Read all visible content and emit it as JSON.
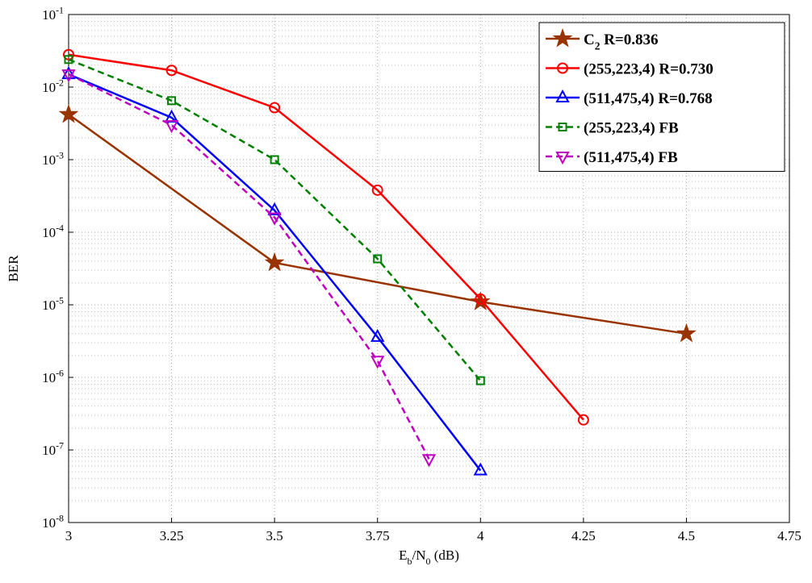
{
  "chart_data": {
    "type": "line",
    "xlabel": "E_b/N_0 (dB)",
    "ylabel": "BER",
    "xlim": [
      3,
      4.75
    ],
    "xticks": [
      3,
      3.25,
      3.5,
      3.75,
      4,
      4.25,
      4.5,
      4.75
    ],
    "ylim": [
      1e-08,
      0.1
    ],
    "yscale": "log",
    "yticks": [
      {
        "value": 1e-08,
        "label": "10^{-8}"
      },
      {
        "value": 1e-07,
        "label": "10^{-7}"
      },
      {
        "value": 1e-06,
        "label": "10^{-6}"
      },
      {
        "value": 1e-05,
        "label": "10^{-5}"
      },
      {
        "value": 0.0001,
        "label": "10^{-4}"
      },
      {
        "value": 0.001,
        "label": "10^{-3}"
      },
      {
        "value": 0.01,
        "label": "10^{-2}"
      },
      {
        "value": 0.1,
        "label": "10^{-1}"
      }
    ],
    "grid": true,
    "minor_grid": true,
    "legend": "upper right",
    "series": [
      {
        "name": "C_2 R=0.836",
        "color": "#993300",
        "marker": "star",
        "dash": false,
        "x": [
          3,
          3.5,
          4,
          4.5
        ],
        "values": [
          0.0042,
          3.8e-05,
          1.1e-05,
          4e-06
        ]
      },
      {
        "name": "(255,223,4) R=0.730",
        "color": "#ff0000",
        "marker": "circle",
        "dash": false,
        "x": [
          3,
          3.25,
          3.5,
          3.75,
          4,
          4.25
        ],
        "values": [
          0.028,
          0.017,
          0.0052,
          0.00038,
          1.2e-05,
          2.6e-07
        ]
      },
      {
        "name": "(511,475,4) R=0.768",
        "color": "#0000ff",
        "marker": "triangle-up",
        "dash": false,
        "x": [
          3,
          3.25,
          3.5,
          3.75,
          4
        ],
        "values": [
          0.015,
          0.0038,
          0.0002,
          3.6e-06,
          5.2e-08
        ]
      },
      {
        "name": "(255,223,4) FB",
        "color": "#008000",
        "marker": "square",
        "dash": true,
        "x": [
          3,
          3.25,
          3.5,
          3.75,
          4
        ],
        "values": [
          0.024,
          0.0065,
          0.001,
          4.3e-05,
          9e-07
        ]
      },
      {
        "name": "(511,475,4) FB",
        "color": "#c000c0",
        "marker": "triangle-down",
        "dash": true,
        "x": [
          3,
          3.25,
          3.5,
          3.75,
          3.875
        ],
        "values": [
          0.015,
          0.003,
          0.00016,
          1.7e-06,
          7.5e-08
        ]
      }
    ]
  }
}
